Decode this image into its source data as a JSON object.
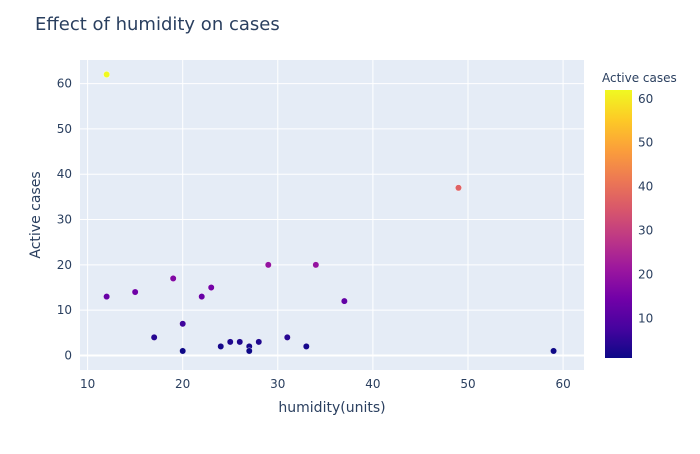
{
  "chart_data": {
    "type": "scatter",
    "title": "Effect of humidity on cases",
    "xlabel": "humidity(units)",
    "ylabel": "Active cases",
    "xlim": [
      9.2,
      62.2
    ],
    "ylim": [
      -3.2,
      65.2
    ],
    "xticks": [
      10,
      20,
      30,
      40,
      50,
      60
    ],
    "yticks": [
      0,
      10,
      20,
      30,
      40,
      50,
      60
    ],
    "grid": true,
    "colorbar": {
      "title": "Active cases",
      "min": 1,
      "max": 62,
      "ticks": [
        10,
        20,
        30,
        40,
        50,
        60
      ],
      "colorscale": [
        "#0d0887",
        "#46039f",
        "#7201a8",
        "#9c179e",
        "#bd3786",
        "#d8576b",
        "#ed7953",
        "#fb9f3a",
        "#fdca26",
        "#f0f921"
      ]
    },
    "points": [
      {
        "x": 12,
        "y": 62
      },
      {
        "x": 12,
        "y": 13
      },
      {
        "x": 15,
        "y": 14
      },
      {
        "x": 17,
        "y": 4
      },
      {
        "x": 19,
        "y": 17
      },
      {
        "x": 20,
        "y": 7
      },
      {
        "x": 20,
        "y": 1
      },
      {
        "x": 22,
        "y": 13
      },
      {
        "x": 23,
        "y": 15
      },
      {
        "x": 24,
        "y": 2
      },
      {
        "x": 25,
        "y": 3
      },
      {
        "x": 26,
        "y": 3
      },
      {
        "x": 27,
        "y": 2
      },
      {
        "x": 27,
        "y": 1
      },
      {
        "x": 28,
        "y": 3
      },
      {
        "x": 29,
        "y": 20
      },
      {
        "x": 31,
        "y": 4
      },
      {
        "x": 33,
        "y": 2
      },
      {
        "x": 34,
        "y": 20
      },
      {
        "x": 37,
        "y": 12
      },
      {
        "x": 49,
        "y": 37
      },
      {
        "x": 59,
        "y": 1
      }
    ]
  }
}
